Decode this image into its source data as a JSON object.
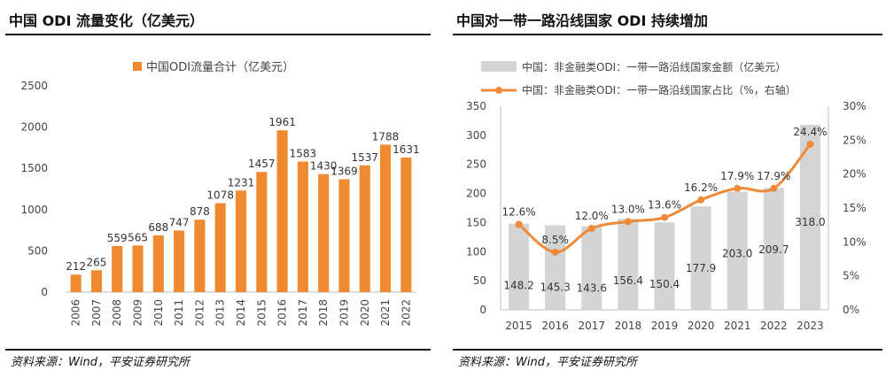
{
  "left": {
    "title": "中国 ODI 流量变化（亿美元）",
    "source": "资料来源：Wind，平安证券研究所"
  },
  "right": {
    "title": "中国对一带一路沿线国家 ODI 持续增加",
    "source": "资料来源：Wind，平安证券研究所"
  },
  "colors": {
    "bar_orange": "#F08A30",
    "bar_gray": "#D4D4D4",
    "line_orange": "#EE8A3A",
    "rule": "#1a1a1a"
  },
  "chart_data": [
    {
      "type": "bar",
      "title": "中国 ODI 流量变化（亿美元）",
      "categories": [
        "2006",
        "2007",
        "2008",
        "2009",
        "2010",
        "2011",
        "2012",
        "2013",
        "2014",
        "2015",
        "2016",
        "2017",
        "2018",
        "2019",
        "2020",
        "2021",
        "2022"
      ],
      "series": [
        {
          "name": "中国ODI流量合计（亿美元）",
          "values": [
            212,
            265,
            559,
            565,
            688,
            747,
            878,
            1078,
            1231,
            1457,
            1961,
            1583,
            1430,
            1369,
            1537,
            1788,
            1631
          ]
        }
      ],
      "ylim": [
        0,
        2500
      ],
      "yticks": [
        "0",
        "500",
        "1000",
        "1500",
        "2000",
        "2500"
      ],
      "grid": false,
      "legend": "top-center",
      "data_labels": true
    },
    {
      "type": "bar",
      "title": "中国对一带一路沿线国家 ODI 持续增加",
      "categories": [
        "2015",
        "2016",
        "2017",
        "2018",
        "2019",
        "2020",
        "2021",
        "2022",
        "2023"
      ],
      "series": [
        {
          "name": "中国：非金融类ODI：一带一路沿线国家金额（亿美元）",
          "type": "bar",
          "axis": "left",
          "values": [
            148.2,
            145.3,
            143.6,
            156.4,
            150.4,
            177.9,
            203.0,
            209.7,
            318.0
          ],
          "labels": [
            "148.2",
            "145.3",
            "143.6",
            "156.4",
            "150.4",
            "177.9",
            "203.0",
            "209.7",
            "318.0"
          ]
        },
        {
          "name": "中国：非金融类ODI：一带一路沿线国家占比（%，右轴）",
          "type": "line",
          "axis": "right",
          "values": [
            12.6,
            8.5,
            12.0,
            13.0,
            13.6,
            16.2,
            17.9,
            17.9,
            24.4
          ],
          "labels": [
            "12.6%",
            "8.5%",
            "12.0%",
            "13.0%",
            "13.6%",
            "16.2%",
            "17.9%",
            "17.9%",
            "24.4%"
          ]
        }
      ],
      "ylim": [
        0,
        350
      ],
      "yticks": [
        "0",
        "50",
        "100",
        "150",
        "200",
        "250",
        "300",
        "350"
      ],
      "y2lim": [
        0,
        30
      ],
      "y2ticks": [
        "0%",
        "5%",
        "10%",
        "15%",
        "20%",
        "25%",
        "30%"
      ],
      "grid": false,
      "legend": "top"
    }
  ]
}
